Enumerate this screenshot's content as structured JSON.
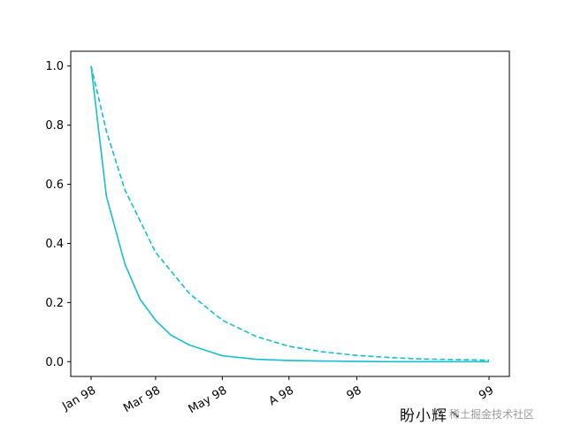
{
  "chart_data": {
    "type": "line",
    "title": "",
    "xlabel": "",
    "ylabel": "",
    "x_tick_labels": [
      "Jan 98",
      "Mar 98",
      "May 98",
      "Jul 98",
      "Sep 98",
      "Jan 99"
    ],
    "x_tick_visible_text": [
      "Jan 98",
      "Mar 98",
      "May 98",
      "A 98",
      "98",
      "99"
    ],
    "x_tick_dates": [
      "1998-01-01",
      "1998-03-01",
      "1998-05-01",
      "1998-07-01",
      "1998-09-01",
      "1998-12-31"
    ],
    "ylim": [
      -0.05,
      1.05
    ],
    "y_ticks": [
      0.0,
      0.2,
      0.4,
      0.6,
      0.8,
      1.0
    ],
    "y_tick_labels": [
      "0.0",
      "0.2",
      "0.4",
      "0.6",
      "0.8",
      "1.0"
    ],
    "grid": false,
    "legend": "none",
    "series": [
      {
        "style": "solid",
        "color": "#17becf",
        "x": [
          "1998-01-01",
          "1998-01-15",
          "1998-02-01",
          "1998-02-15",
          "1998-03-01",
          "1998-03-15",
          "1998-04-01",
          "1998-05-01",
          "1998-06-01",
          "1998-07-01",
          "1998-08-01",
          "1998-09-01",
          "1998-10-01",
          "1998-11-01",
          "1998-12-31"
        ],
        "y": [
          1.0,
          0.56,
          0.33,
          0.21,
          0.14,
          0.09,
          0.056,
          0.02,
          0.008,
          0.004,
          0.002,
          0.001,
          0.0,
          0.0,
          0.0
        ]
      },
      {
        "style": "dashed",
        "color": "#17becf",
        "x": [
          "1998-01-01",
          "1998-01-15",
          "1998-02-01",
          "1998-03-01",
          "1998-04-01",
          "1998-05-01",
          "1998-06-01",
          "1998-07-01",
          "1998-08-01",
          "1998-09-01",
          "1998-10-01",
          "1998-11-01",
          "1998-12-31"
        ],
        "y": [
          1.0,
          0.78,
          0.58,
          0.37,
          0.23,
          0.14,
          0.085,
          0.052,
          0.033,
          0.021,
          0.014,
          0.009,
          0.005
        ]
      }
    ]
  },
  "watermark": {
    "main": "盼小辉丶",
    "sub": "稀土掘金技术社区"
  }
}
